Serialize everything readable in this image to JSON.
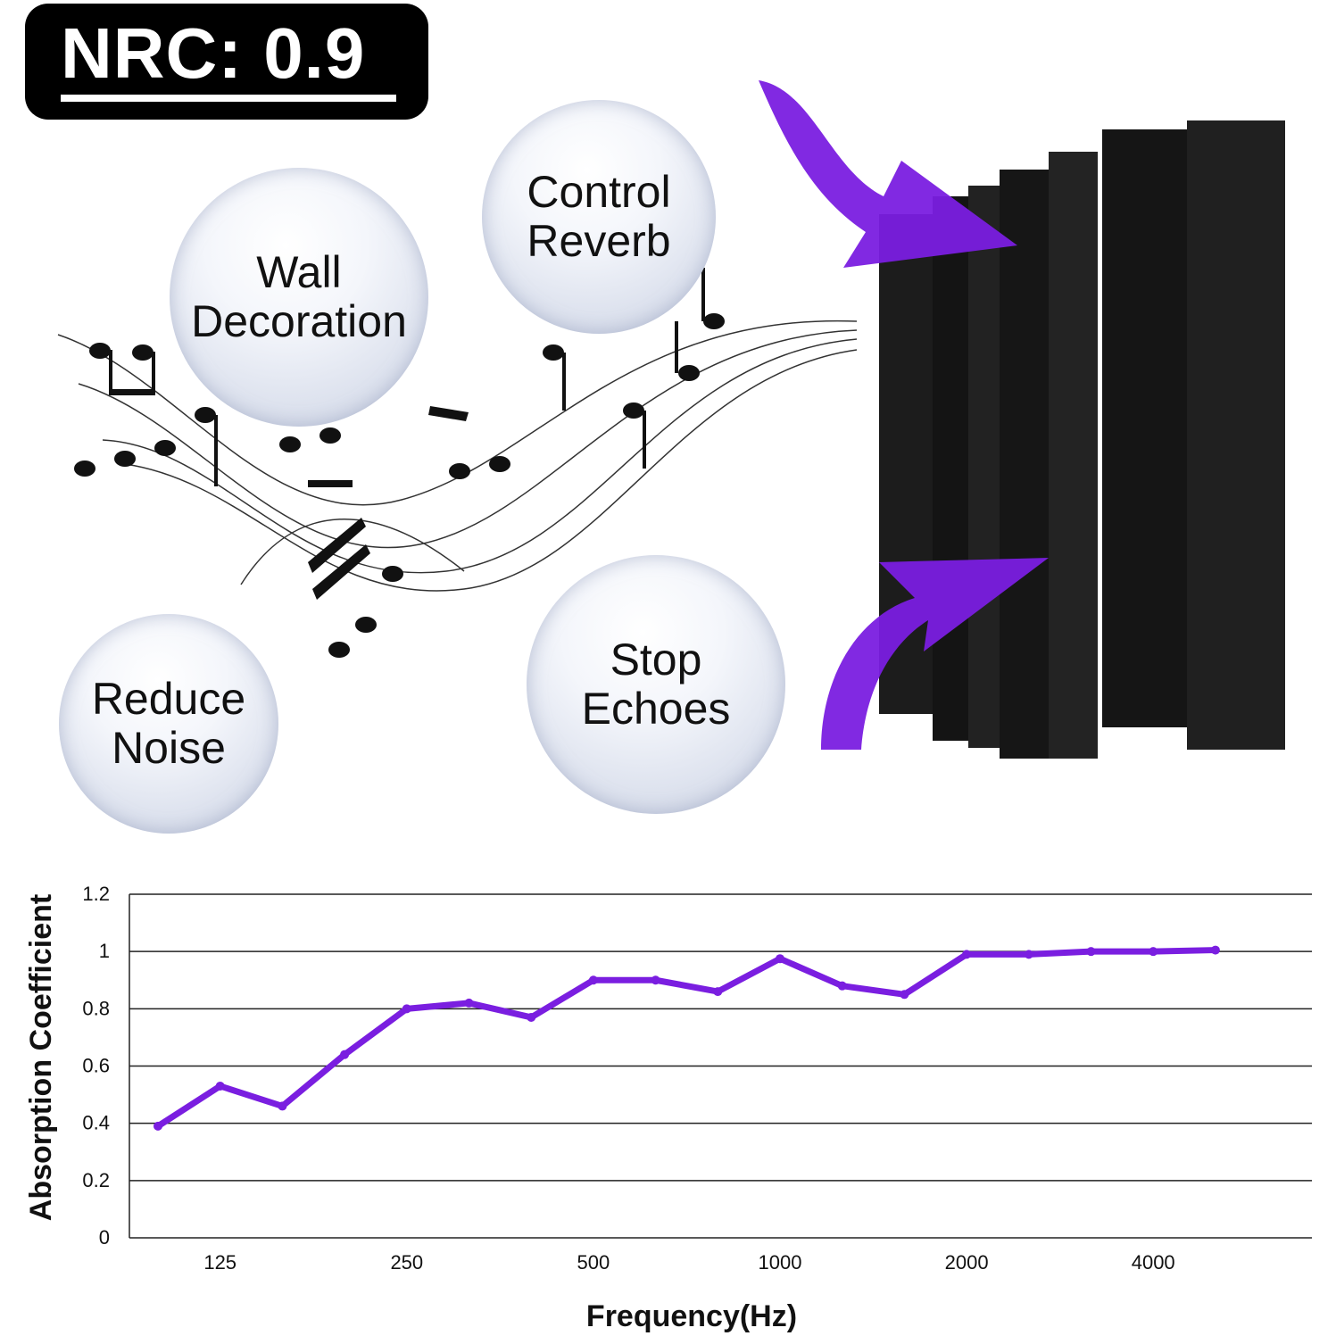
{
  "badge": {
    "text": "NRC: 0.9"
  },
  "bubbles": [
    {
      "text": "Wall\nDecoration"
    },
    {
      "text": "Control\nReverb"
    },
    {
      "text": "Reduce\nNoise"
    },
    {
      "text": "Stop\nEchoes"
    }
  ],
  "colors": {
    "accent": "#7a1ee0",
    "panel": "#1a1a1a"
  },
  "chart_data": {
    "type": "line",
    "title": "",
    "xlabel": "Frequency(Hz)",
    "ylabel": "Absorption Coefficient",
    "categories": [
      "100",
      "125",
      "160",
      "200",
      "250",
      "315",
      "400",
      "500",
      "630",
      "800",
      "1000",
      "1250",
      "1600",
      "2000",
      "2500",
      "3150",
      "4000",
      "5000"
    ],
    "x_tick_labels": [
      "125",
      "250",
      "500",
      "1000",
      "2000",
      "4000"
    ],
    "values": [
      0.39,
      0.53,
      0.46,
      0.64,
      0.8,
      0.82,
      0.77,
      0.9,
      0.9,
      0.86,
      0.975,
      0.88,
      0.85,
      0.99,
      0.99,
      1.0,
      1.0,
      1.005
    ],
    "ylim": [
      0,
      1.2
    ],
    "yticks": [
      "0",
      "0.2",
      "0.4",
      "0.6",
      "0.8",
      "1",
      "1.2"
    ],
    "grid": true,
    "color": "#7a1ee0"
  }
}
